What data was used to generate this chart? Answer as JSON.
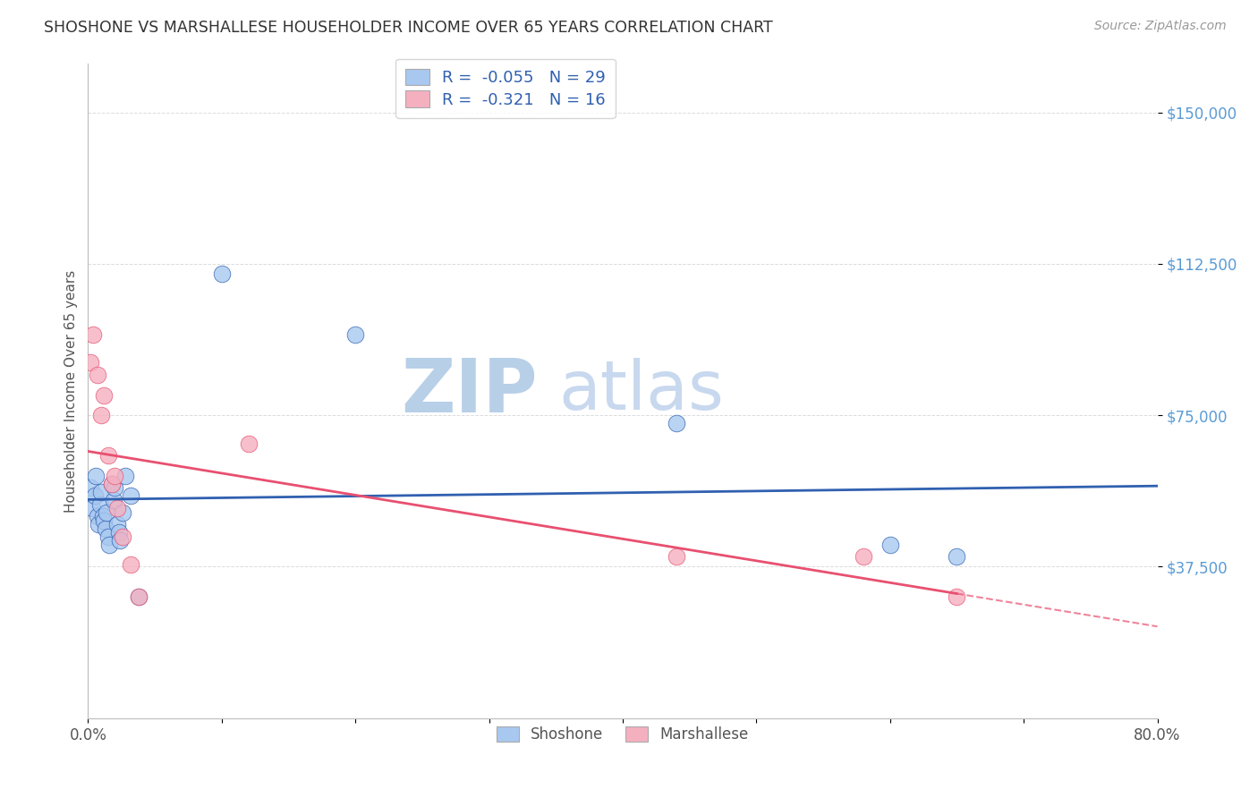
{
  "title": "SHOSHONE VS MARSHALLESE HOUSEHOLDER INCOME OVER 65 YEARS CORRELATION CHART",
  "source": "Source: ZipAtlas.com",
  "ylabel": "Householder Income Over 65 years",
  "xlim": [
    0.0,
    0.8
  ],
  "ylim": [
    0,
    162000
  ],
  "yticks": [
    37500,
    75000,
    112500,
    150000
  ],
  "ytick_labels": [
    "$37,500",
    "$75,000",
    "$112,500",
    "$150,000"
  ],
  "xticks": [
    0.0,
    0.1,
    0.2,
    0.3,
    0.4,
    0.5,
    0.6,
    0.7,
    0.8
  ],
  "xtick_labels": [
    "0.0%",
    "",
    "",
    "",
    "",
    "",
    "",
    "",
    "80.0%"
  ],
  "shoshone_x": [
    0.002,
    0.003,
    0.005,
    0.006,
    0.007,
    0.008,
    0.009,
    0.01,
    0.011,
    0.012,
    0.013,
    0.014,
    0.015,
    0.016,
    0.018,
    0.019,
    0.02,
    0.022,
    0.023,
    0.024,
    0.026,
    0.028,
    0.032,
    0.038,
    0.1,
    0.2,
    0.44,
    0.6,
    0.65
  ],
  "shoshone_y": [
    57000,
    52000,
    55000,
    60000,
    50000,
    48000,
    53000,
    56000,
    50000,
    49000,
    47000,
    51000,
    45000,
    43000,
    58000,
    54000,
    57000,
    48000,
    46000,
    44000,
    51000,
    60000,
    55000,
    30000,
    110000,
    95000,
    73000,
    43000,
    40000
  ],
  "marshallese_x": [
    0.002,
    0.004,
    0.007,
    0.01,
    0.012,
    0.015,
    0.018,
    0.02,
    0.022,
    0.026,
    0.032,
    0.038,
    0.12,
    0.44,
    0.58,
    0.65
  ],
  "marshallese_y": [
    88000,
    95000,
    85000,
    75000,
    80000,
    65000,
    58000,
    60000,
    52000,
    45000,
    38000,
    30000,
    68000,
    40000,
    40000,
    30000
  ],
  "shoshone_color": "#a8c8f0",
  "marshallese_color": "#f5b0c0",
  "shoshone_line_color": "#3060b0",
  "marshallese_line_color": "#e85070",
  "shoshone_R": -0.055,
  "shoshone_N": 29,
  "marshallese_R": -0.321,
  "marshallese_N": 16,
  "background_color": "#ffffff",
  "grid_color": "#cccccc",
  "title_color": "#333333",
  "axis_label_color": "#555555",
  "tick_color_y": "#5b9bd5",
  "watermark_zip_color": "#b8cfe8",
  "watermark_atlas_color": "#c8d8ee",
  "legend_label1": "R =  -0.055   N = 29",
  "legend_label2": "R =  -0.321   N = 16"
}
